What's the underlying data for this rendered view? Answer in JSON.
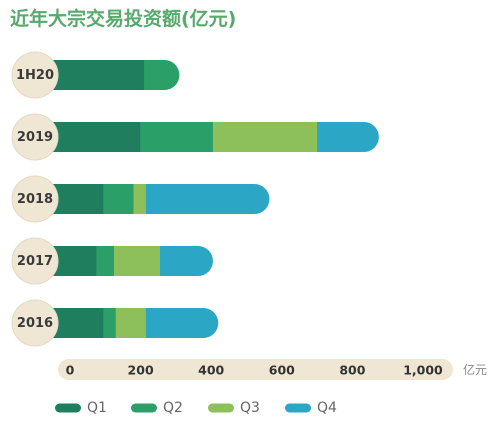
{
  "colors": {
    "title": "#58a96c",
    "category_badge": "#efe7d3",
    "category_badge_border": "#e4dac3",
    "axis_band": "#efe7d3"
  },
  "chart_data": {
    "type": "bar",
    "orientation": "horizontal",
    "stacked": true,
    "title": "近年大宗交易投资额(亿元)",
    "categories": [
      "1H20",
      "2019",
      "2018",
      "2017",
      "2016"
    ],
    "series": [
      {
        "name": "Q1",
        "color": "#1e7e5e",
        "values": [
          210,
          200,
          95,
          75,
          95
        ]
      },
      {
        "name": "Q2",
        "color": "#2aa068",
        "values": [
          100,
          205,
          85,
          50,
          35
        ]
      },
      {
        "name": "Q3",
        "color": "#8dc05a",
        "values": [
          null,
          295,
          35,
          130,
          85
        ]
      },
      {
        "name": "Q4",
        "color": "#2ba6c5",
        "values": [
          null,
          175,
          350,
          150,
          205
        ]
      }
    ],
    "xlim": [
      0,
      1000
    ],
    "xticks": [
      0,
      200,
      400,
      600,
      800,
      1000
    ],
    "xtick_labels": [
      "0",
      "200",
      "400",
      "600",
      "800",
      "1,000"
    ],
    "xunit": "亿元",
    "grid": false,
    "legend": "bottom"
  }
}
